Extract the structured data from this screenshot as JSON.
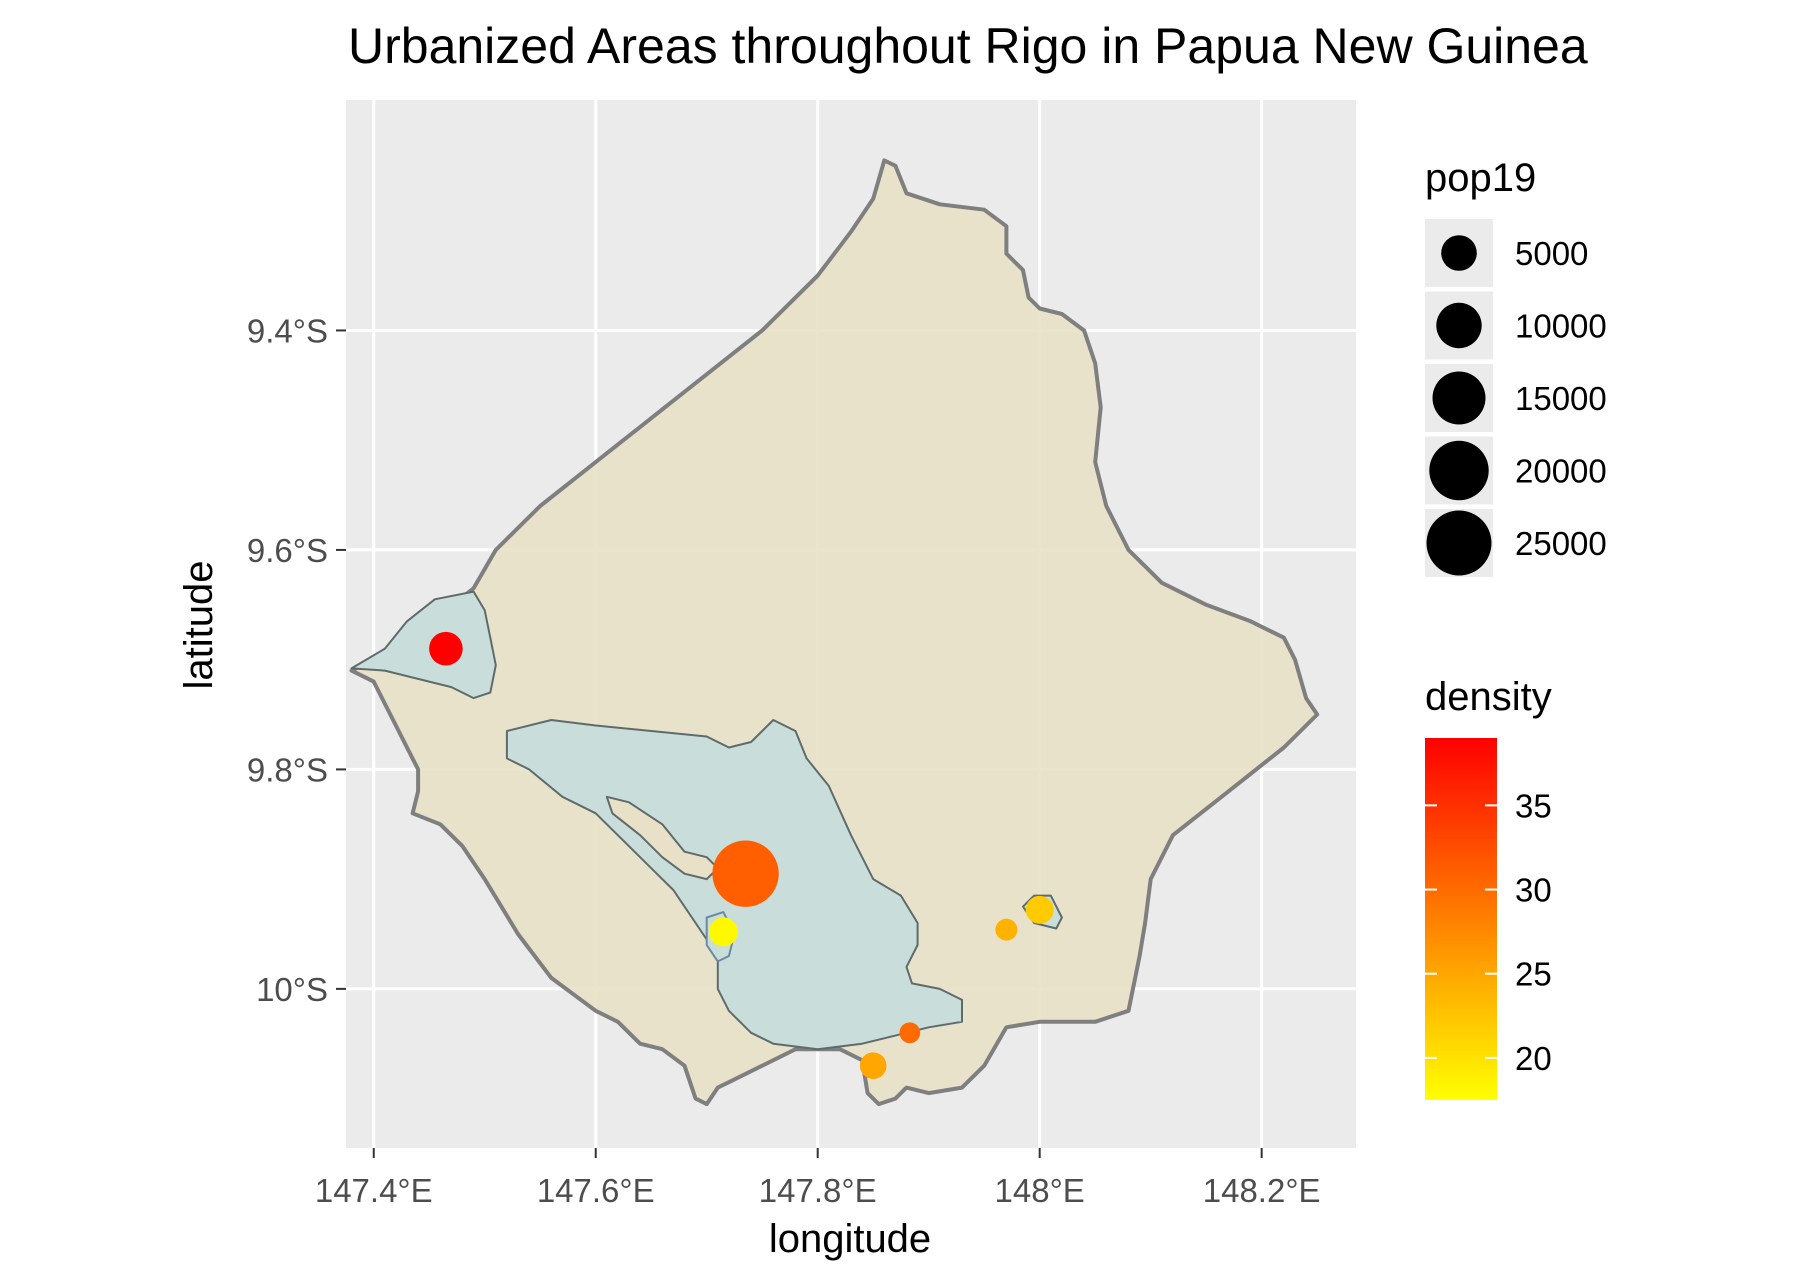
{
  "chart_data": {
    "type": "map",
    "title": "Urbanized Areas throughout Rigo in Papua New Guinea",
    "xlabel": "longitude",
    "ylabel": "latitude",
    "xlim": [
      147.375,
      148.285
    ],
    "ylim": [
      -10.145,
      -9.19
    ],
    "x_ticks": [
      {
        "value": 147.4,
        "label": "147.4°E"
      },
      {
        "value": 147.6,
        "label": "147.6°E"
      },
      {
        "value": 147.8,
        "label": "147.8°E"
      },
      {
        "value": 148.0,
        "label": "148°E"
      },
      {
        "value": 148.2,
        "label": "148.2°E"
      }
    ],
    "y_ticks": [
      {
        "value": -9.4,
        "label": "9.4°S"
      },
      {
        "value": -9.6,
        "label": "9.6°S"
      },
      {
        "value": -9.8,
        "label": "9.8°S"
      },
      {
        "value": -10.0,
        "label": "10°S"
      }
    ],
    "colors": {
      "panel": "#ebebeb",
      "grid": "#ffffff",
      "district_fill": "#e8e1c8",
      "district_stroke": "#7f7f7f",
      "urban_fill": "#c9dedb",
      "urban_stroke": "#5f6b6b",
      "density_low": "#ffff00",
      "density_mid": "#ff8000",
      "density_high": "#ff0000"
    },
    "district_boundary": [
      [
        147.42,
        -9.69
      ],
      [
        147.44,
        -9.67
      ],
      [
        147.465,
        -9.655
      ],
      [
        147.49,
        -9.635
      ],
      [
        147.51,
        -9.6
      ],
      [
        147.55,
        -9.56
      ],
      [
        147.6,
        -9.52
      ],
      [
        147.65,
        -9.48
      ],
      [
        147.7,
        -9.44
      ],
      [
        147.75,
        -9.4
      ],
      [
        147.8,
        -9.35
      ],
      [
        147.83,
        -9.31
      ],
      [
        147.85,
        -9.28
      ],
      [
        147.86,
        -9.245
      ],
      [
        147.87,
        -9.25
      ],
      [
        147.88,
        -9.275
      ],
      [
        147.91,
        -9.285
      ],
      [
        147.95,
        -9.29
      ],
      [
        147.97,
        -9.305
      ],
      [
        147.97,
        -9.33
      ],
      [
        147.985,
        -9.345
      ],
      [
        147.99,
        -9.37
      ],
      [
        148.0,
        -9.38
      ],
      [
        148.02,
        -9.385
      ],
      [
        148.04,
        -9.4
      ],
      [
        148.05,
        -9.43
      ],
      [
        148.055,
        -9.47
      ],
      [
        148.05,
        -9.52
      ],
      [
        148.06,
        -9.56
      ],
      [
        148.08,
        -9.6
      ],
      [
        148.11,
        -9.63
      ],
      [
        148.15,
        -9.65
      ],
      [
        148.19,
        -9.665
      ],
      [
        148.22,
        -9.68
      ],
      [
        148.23,
        -9.7
      ],
      [
        148.24,
        -9.735
      ],
      [
        148.25,
        -9.75
      ],
      [
        148.22,
        -9.78
      ],
      [
        148.17,
        -9.82
      ],
      [
        148.12,
        -9.86
      ],
      [
        148.1,
        -9.9
      ],
      [
        148.095,
        -9.94
      ],
      [
        148.09,
        -9.97
      ],
      [
        148.08,
        -10.02
      ],
      [
        148.05,
        -10.03
      ],
      [
        148.0,
        -10.03
      ],
      [
        147.97,
        -10.035
      ],
      [
        147.95,
        -10.07
      ],
      [
        147.93,
        -10.09
      ],
      [
        147.9,
        -10.095
      ],
      [
        147.88,
        -10.09
      ],
      [
        147.87,
        -10.1
      ],
      [
        147.855,
        -10.105
      ],
      [
        147.845,
        -10.095
      ],
      [
        147.84,
        -10.065
      ],
      [
        147.82,
        -10.055
      ],
      [
        147.78,
        -10.055
      ],
      [
        147.75,
        -10.07
      ],
      [
        147.72,
        -10.085
      ],
      [
        147.71,
        -10.09
      ],
      [
        147.7,
        -10.105
      ],
      [
        147.69,
        -10.1
      ],
      [
        147.68,
        -10.07
      ],
      [
        147.66,
        -10.055
      ],
      [
        147.64,
        -10.05
      ],
      [
        147.62,
        -10.03
      ],
      [
        147.6,
        -10.02
      ],
      [
        147.56,
        -9.99
      ],
      [
        147.53,
        -9.95
      ],
      [
        147.5,
        -9.9
      ],
      [
        147.48,
        -9.87
      ],
      [
        147.46,
        -9.85
      ],
      [
        147.435,
        -9.84
      ],
      [
        147.44,
        -9.82
      ],
      [
        147.44,
        -9.8
      ],
      [
        147.43,
        -9.78
      ],
      [
        147.42,
        -9.76
      ],
      [
        147.41,
        -9.74
      ],
      [
        147.4,
        -9.72
      ],
      [
        147.38,
        -9.71
      ],
      [
        147.42,
        -9.69
      ]
    ],
    "urban_areas": [
      {
        "name": "west",
        "polygon": [
          [
            147.38,
            -9.708
          ],
          [
            147.41,
            -9.69
          ],
          [
            147.43,
            -9.665
          ],
          [
            147.455,
            -9.645
          ],
          [
            147.49,
            -9.638
          ],
          [
            147.5,
            -9.655
          ],
          [
            147.505,
            -9.68
          ],
          [
            147.51,
            -9.705
          ],
          [
            147.505,
            -9.73
          ],
          [
            147.49,
            -9.735
          ],
          [
            147.47,
            -9.725
          ],
          [
            147.45,
            -9.72
          ],
          [
            147.43,
            -9.715
          ],
          [
            147.41,
            -9.71
          ],
          [
            147.38,
            -9.708
          ]
        ]
      },
      {
        "name": "central",
        "polygon": [
          [
            147.52,
            -9.765
          ],
          [
            147.56,
            -9.755
          ],
          [
            147.6,
            -9.76
          ],
          [
            147.65,
            -9.765
          ],
          [
            147.7,
            -9.77
          ],
          [
            147.72,
            -9.78
          ],
          [
            147.74,
            -9.775
          ],
          [
            147.76,
            -9.755
          ],
          [
            147.78,
            -9.765
          ],
          [
            147.79,
            -9.79
          ],
          [
            147.81,
            -9.815
          ],
          [
            147.83,
            -9.86
          ],
          [
            147.85,
            -9.9
          ],
          [
            147.875,
            -9.915
          ],
          [
            147.89,
            -9.94
          ],
          [
            147.89,
            -9.96
          ],
          [
            147.88,
            -9.98
          ],
          [
            147.885,
            -9.995
          ],
          [
            147.91,
            -10.0
          ],
          [
            147.93,
            -10.01
          ],
          [
            147.93,
            -10.03
          ],
          [
            147.9,
            -10.035
          ],
          [
            147.88,
            -10.04
          ],
          [
            147.84,
            -10.05
          ],
          [
            147.8,
            -10.055
          ],
          [
            147.76,
            -10.05
          ],
          [
            147.74,
            -10.04
          ],
          [
            147.72,
            -10.02
          ],
          [
            147.71,
            -10.0
          ],
          [
            147.71,
            -9.97
          ],
          [
            147.69,
            -9.94
          ],
          [
            147.67,
            -9.91
          ],
          [
            147.65,
            -9.89
          ],
          [
            147.63,
            -9.87
          ],
          [
            147.6,
            -9.84
          ],
          [
            147.57,
            -9.825
          ],
          [
            147.54,
            -9.8
          ],
          [
            147.52,
            -9.79
          ],
          [
            147.52,
            -9.765
          ]
        ]
      },
      {
        "name": "central-hole",
        "polygon": [
          [
            147.61,
            -9.825
          ],
          [
            147.63,
            -9.83
          ],
          [
            147.66,
            -9.85
          ],
          [
            147.68,
            -9.875
          ],
          [
            147.7,
            -9.88
          ],
          [
            147.71,
            -9.89
          ],
          [
            147.7,
            -9.9
          ],
          [
            147.68,
            -9.895
          ],
          [
            147.66,
            -9.88
          ],
          [
            147.64,
            -9.86
          ],
          [
            147.615,
            -9.84
          ],
          [
            147.61,
            -9.825
          ]
        ]
      },
      {
        "name": "small-loop",
        "polygon": [
          [
            147.7,
            -9.935
          ],
          [
            147.715,
            -9.93
          ],
          [
            147.725,
            -9.95
          ],
          [
            147.72,
            -9.97
          ],
          [
            147.71,
            -9.975
          ],
          [
            147.7,
            -9.96
          ],
          [
            147.7,
            -9.935
          ]
        ]
      },
      {
        "name": "east",
        "polygon": [
          [
            147.985,
            -9.925
          ],
          [
            147.995,
            -9.915
          ],
          [
            148.01,
            -9.915
          ],
          [
            148.02,
            -9.935
          ],
          [
            148.015,
            -9.945
          ],
          [
            147.995,
            -9.94
          ],
          [
            147.985,
            -9.925
          ]
        ]
      }
    ],
    "points": [
      {
        "lon": 147.465,
        "lat": -9.69,
        "pop19": 4200,
        "density": 39
      },
      {
        "lon": 147.735,
        "lat": -9.895,
        "pop19": 26500,
        "density": 31
      },
      {
        "lon": 147.715,
        "lat": -9.948,
        "pop19": 2600,
        "density": 18
      },
      {
        "lon": 147.97,
        "lat": -9.946,
        "pop19": 900,
        "density": 24
      },
      {
        "lon": 148.0,
        "lat": -9.928,
        "pop19": 2300,
        "density": 22
      },
      {
        "lon": 147.883,
        "lat": -10.04,
        "pop19": 700,
        "density": 30
      },
      {
        "lon": 147.85,
        "lat": -10.07,
        "pop19": 1900,
        "density": 25
      }
    ],
    "size_legend": {
      "title": "pop19",
      "entries": [
        {
          "value": 5000,
          "label": "5000"
        },
        {
          "value": 10000,
          "label": "10000"
        },
        {
          "value": 15000,
          "label": "15000"
        },
        {
          "value": 20000,
          "label": "20000"
        },
        {
          "value": 25000,
          "label": "25000"
        }
      ]
    },
    "color_legend": {
      "title": "density",
      "range": [
        17.5,
        39
      ],
      "ticks": [
        {
          "value": 20,
          "label": "20"
        },
        {
          "value": 25,
          "label": "25"
        },
        {
          "value": 30,
          "label": "30"
        },
        {
          "value": 35,
          "label": "35"
        }
      ]
    },
    "grid": true,
    "legend_position": "right"
  }
}
